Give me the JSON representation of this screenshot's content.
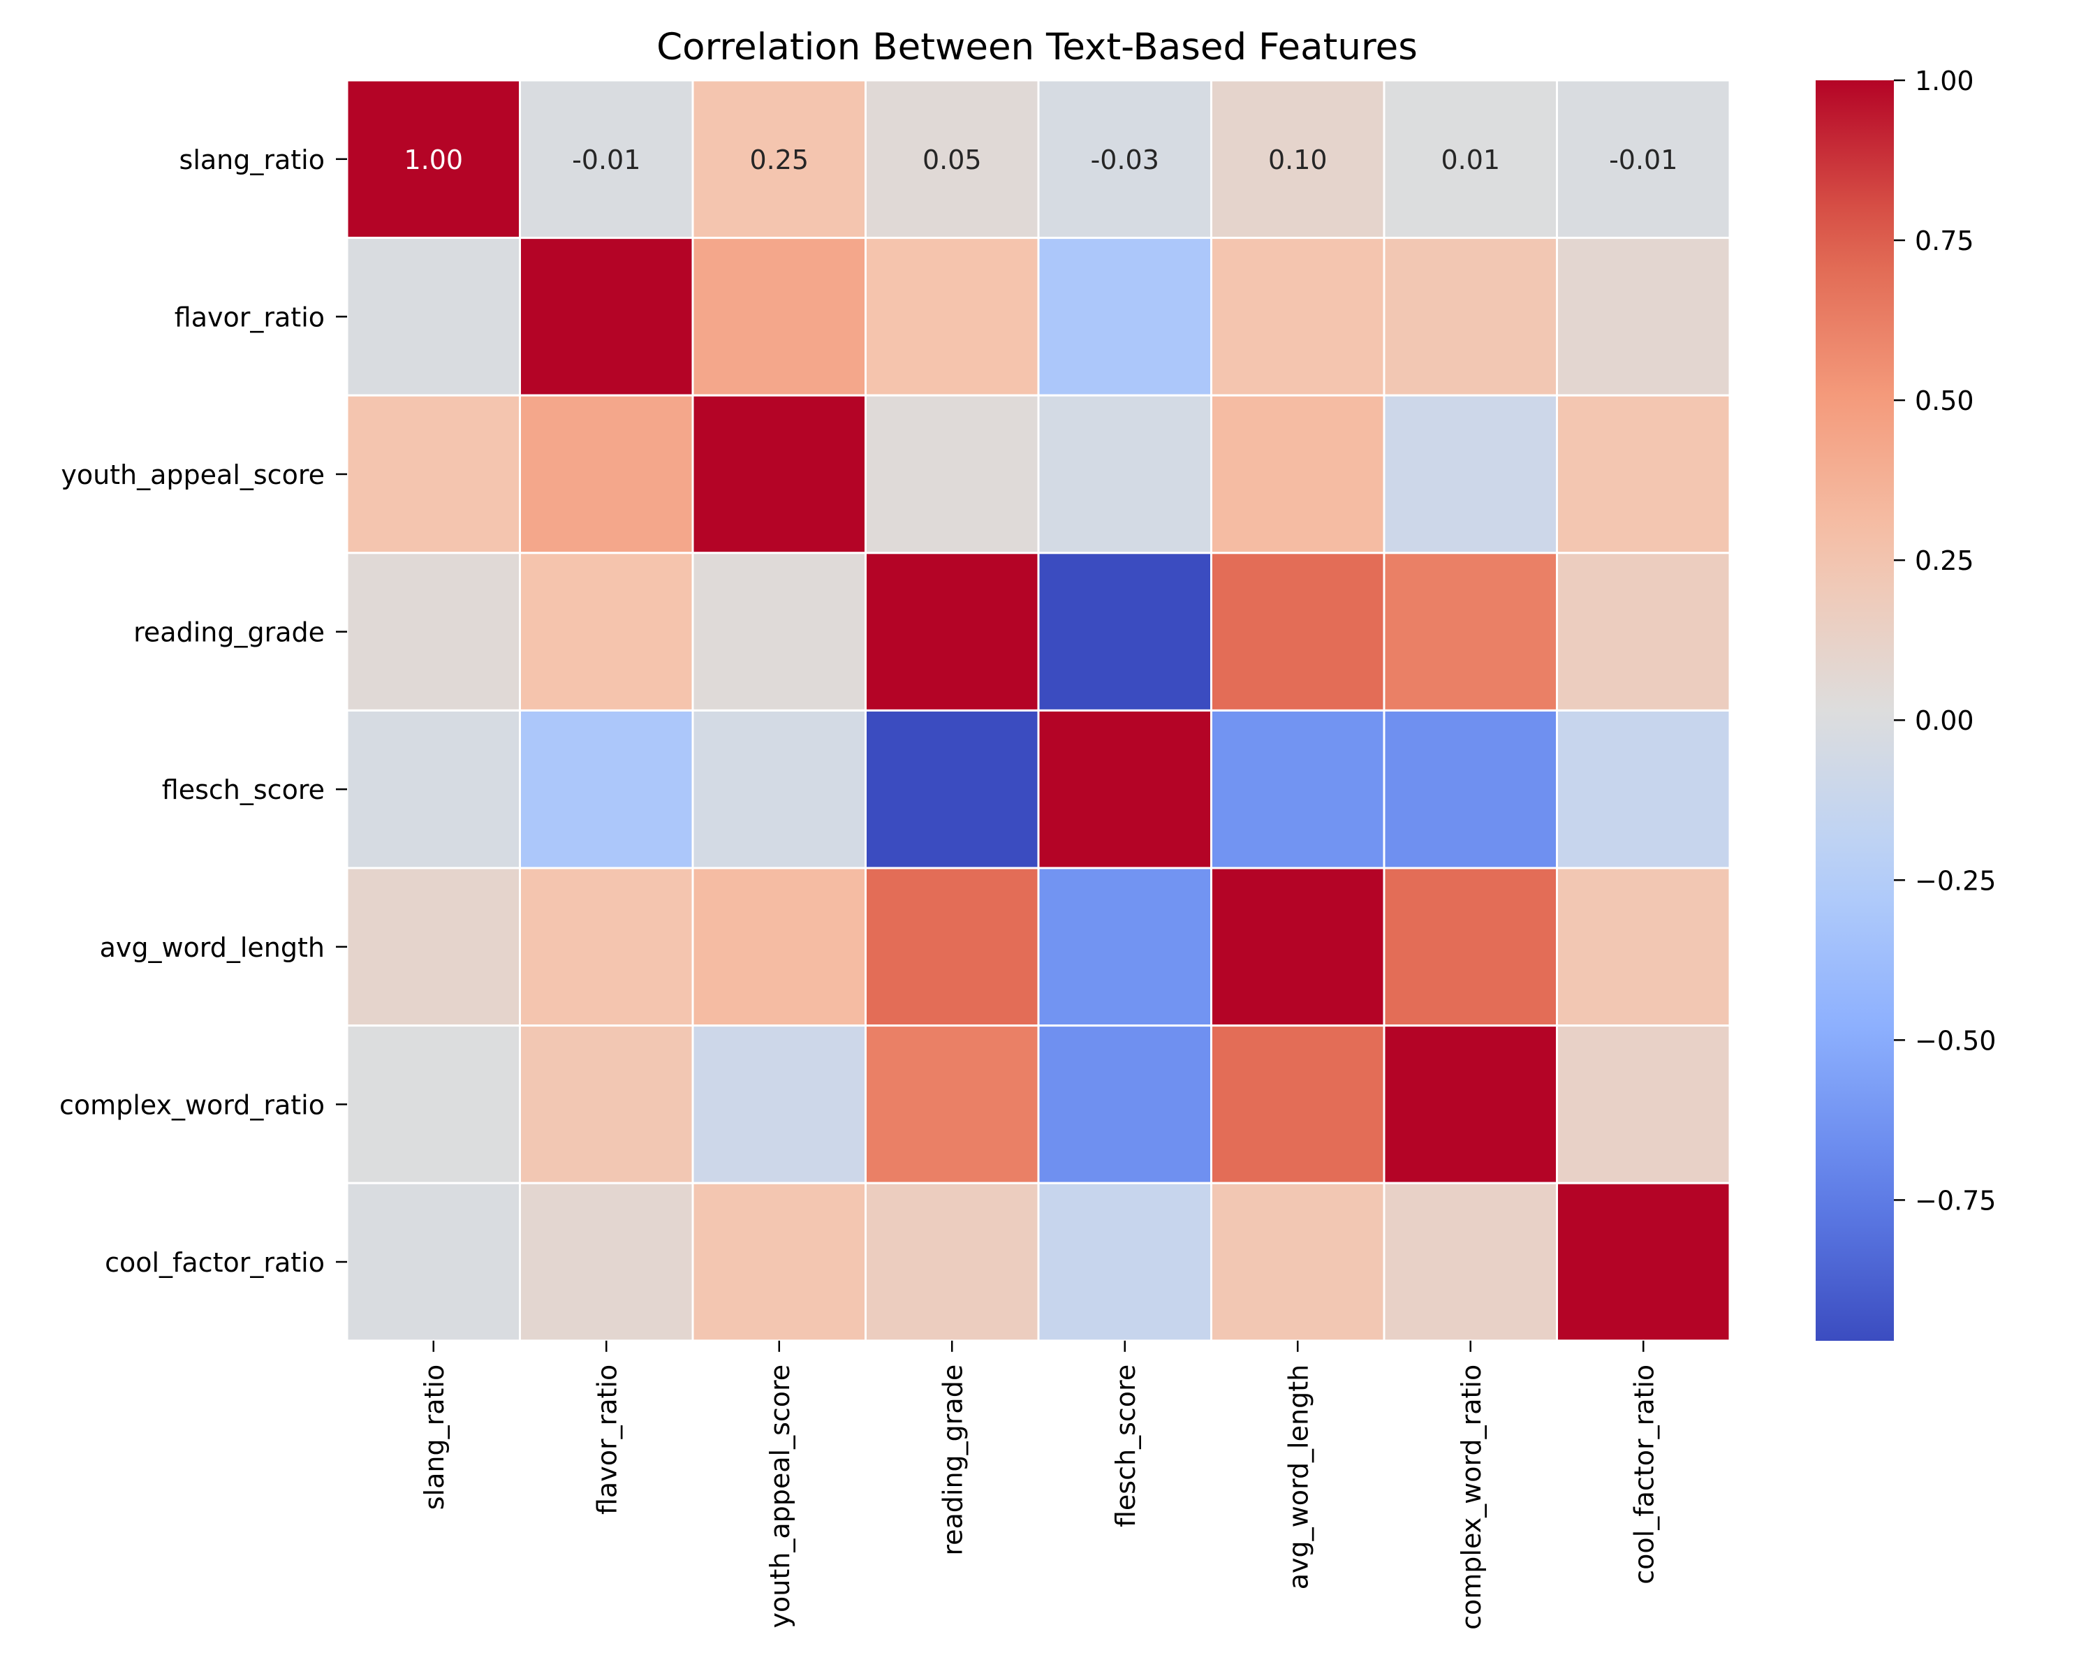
{
  "chart_data": {
    "type": "heatmap",
    "title": "Correlation Between Text-Based Features",
    "row_labels": [
      "slang_ratio",
      "flavor_ratio",
      "youth_appeal_score",
      "reading_grade",
      "flesch_score",
      "avg_word_length",
      "complex_word_ratio",
      "cool_factor_ratio"
    ],
    "col_labels": [
      "slang_ratio",
      "flavor_ratio",
      "youth_appeal_score",
      "reading_grade",
      "flesch_score",
      "avg_word_length",
      "complex_word_ratio",
      "cool_factor_ratio"
    ],
    "values": [
      [
        1.0,
        -0.01,
        0.25,
        0.05,
        -0.03,
        0.1,
        0.01,
        -0.01
      ],
      [
        -0.01,
        1.0,
        0.43,
        0.26,
        -0.3,
        0.25,
        0.23,
        0.08
      ],
      [
        0.25,
        0.43,
        1.0,
        0.04,
        -0.05,
        0.31,
        -0.09,
        0.24
      ],
      [
        0.05,
        0.26,
        0.04,
        1.0,
        -0.97,
        0.7,
        0.62,
        0.17
      ],
      [
        -0.03,
        -0.3,
        -0.05,
        -0.97,
        1.0,
        -0.63,
        -0.65,
        -0.13
      ],
      [
        0.1,
        0.25,
        0.31,
        0.7,
        -0.63,
        1.0,
        0.7,
        0.23
      ],
      [
        0.01,
        0.23,
        -0.09,
        0.62,
        -0.65,
        0.7,
        1.0,
        0.13
      ],
      [
        -0.01,
        0.08,
        0.24,
        0.17,
        -0.13,
        0.23,
        0.13,
        1.0
      ]
    ],
    "annotated_row": 0,
    "vmin": -0.97,
    "vmax": 1.0,
    "colormap": "coolwarm",
    "colorbar_ticks": [
      "1.00",
      "0.75",
      "0.50",
      "0.25",
      "0.00",
      "−0.25",
      "−0.50",
      "−0.75"
    ],
    "colorbar_tick_values": [
      1.0,
      0.75,
      0.5,
      0.25,
      0.0,
      -0.25,
      -0.5,
      -0.75
    ],
    "cell_border_color": "#ffffff"
  }
}
